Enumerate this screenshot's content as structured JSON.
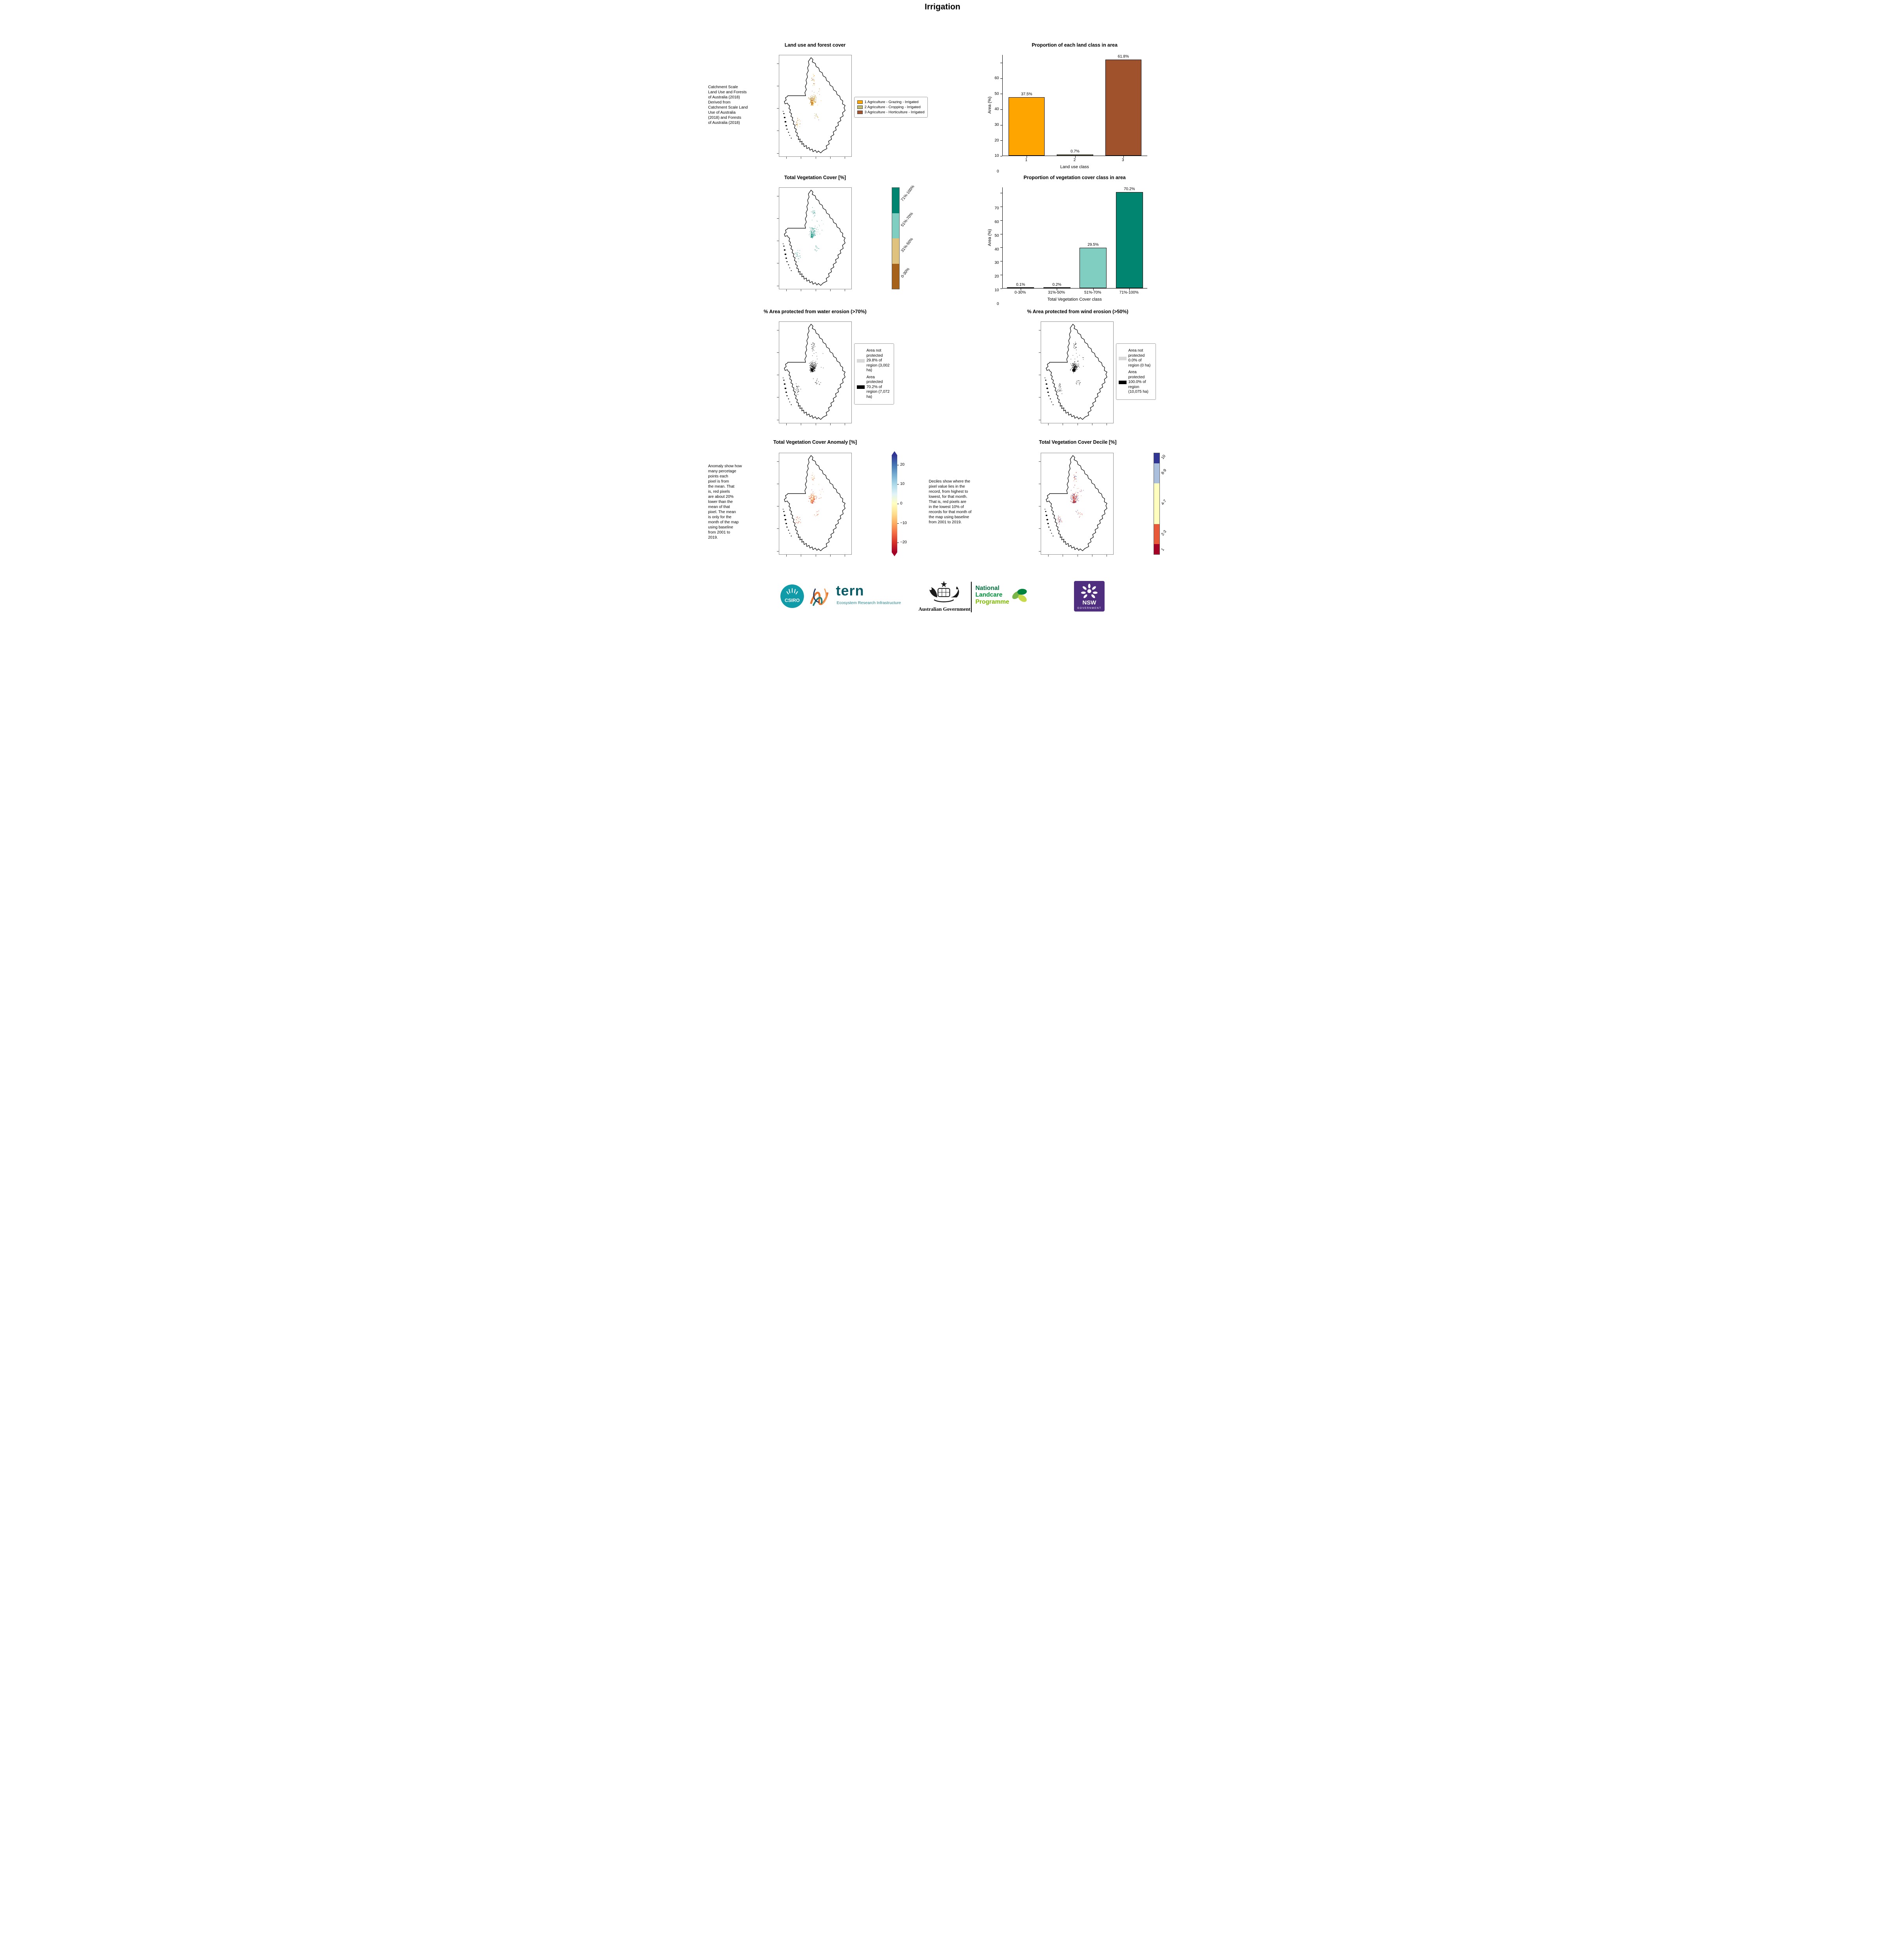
{
  "page_title": "Irrigation",
  "panels": {
    "land_use": {
      "title": "Land use and forest cover",
      "side_note": " Catchment Scale\nLand Use and Forests\nof Australia (2018)\nDerived from\nCatchment Scale Land\nUse of Australia\n(2018) and Forests\nof Australia (2018)",
      "legend": [
        {
          "label": "1 Agriculture - Grazing - Irrigated",
          "color": "#FFA500"
        },
        {
          "label": "2 Agriculture - Cropping - Irrigated",
          "color": "#BDB76B"
        },
        {
          "label": "3 Agriculture - Horticulture - Irrigated",
          "color": "#A0522D"
        }
      ]
    },
    "veg_cover": {
      "title": "Total Vegetation Cover [%]",
      "colorbar": [
        {
          "label": "71%-100%",
          "color": "#018571"
        },
        {
          "label": "51%-70%",
          "color": "#80CDC1"
        },
        {
          "label": "31%-50%",
          "color": "#DFC27D"
        },
        {
          "label": "0-30%",
          "color": "#A6611A"
        }
      ]
    },
    "water_erosion": {
      "title": "% Area protected from water erosion (>70%)",
      "legend": [
        {
          "label": "Area not protected 29.8% of region (3,002 ha)",
          "color": "#D9D9D9"
        },
        {
          "label": "Area protected 70.2% of region (7,072 ha)",
          "color": "#000000"
        }
      ]
    },
    "wind_erosion": {
      "title": "% Area protected from wind erosion (>50%)",
      "legend": [
        {
          "label": "Area not protected 0.0% of region (0 ha)",
          "color": "#D9D9D9"
        },
        {
          "label": "Area protected 100.0% of region (10,075 ha)",
          "color": "#000000"
        }
      ]
    },
    "anomaly": {
      "title": "Total Vegetation Cover Anomaly [%]",
      "side_note": "Anomaly show how\nmany percetage\npoints each\npixel is from\nthe mean. That\nis, red pixels\nare about 20%\nlower than the\nmean of that\npixel. The mean\nis only for the\nmonth of the map\nusing baseline\nfrom 2001 to\n2019.",
      "colorbar_ticks": [
        "20",
        "10",
        "0",
        "−10",
        "−20"
      ],
      "colorbar_colors": [
        "#313695",
        "#4575B4",
        "#74ADD1",
        "#ABD9E9",
        "#E0F3F8",
        "#FFFFBF",
        "#FEE090",
        "#FDAE61",
        "#F46D43",
        "#D73027",
        "#A50026"
      ]
    },
    "decile": {
      "title": "Total Vegetation Cover Decile [%]",
      "side_note": "Deciles show where the\npixel value lies in the\nrecord, from highest to\nlowest, for that month.\nThat is, red pixels are\nin the lowest 10% of\nrecords for that month of\nthe map using baseline\nfrom 2001 to 2019.",
      "colorbar": [
        {
          "label": "10",
          "color": "#313695",
          "span": 1
        },
        {
          "label": "8-9",
          "color": "#A9BFDC",
          "span": 2
        },
        {
          "label": "4-7",
          "color": "#FEFFBE",
          "span": 4
        },
        {
          "label": "2-3",
          "color": "#E8593A",
          "span": 2
        },
        {
          "label": "1",
          "color": "#A50026",
          "span": 1
        }
      ]
    }
  },
  "chart_data": [
    {
      "type": "bar",
      "title": "Proportion of each land class in area",
      "categories": [
        "1",
        "2",
        "3"
      ],
      "values": [
        37.5,
        0.7,
        61.8
      ],
      "value_labels": [
        "37.5%",
        "0.7%",
        "61.8%"
      ],
      "colors": [
        "#FFA500",
        "#BDB76B",
        "#A0522D"
      ],
      "xlabel": "Land use class",
      "ylabel": "Area (%)",
      "ylim": [
        0,
        65
      ],
      "yticks": [
        0,
        10,
        20,
        30,
        40,
        50,
        60
      ]
    },
    {
      "type": "bar",
      "title": "Proportion of vegetation cover class in area",
      "categories": [
        "0-30%",
        "31%-50%",
        "51%-70%",
        "71%-100%"
      ],
      "values": [
        0.1,
        0.2,
        29.5,
        70.2
      ],
      "value_labels": [
        "0.1%",
        "0.2%",
        "29.5%",
        "70.2%"
      ],
      "colors": [
        "#A6611A",
        "#DFC27D",
        "#80CDC1",
        "#018571"
      ],
      "xlabel": "Total Vegetation Cover class",
      "ylabel": "Area (%)",
      "ylim": [
        0,
        74
      ],
      "yticks": [
        0,
        10,
        20,
        30,
        40,
        50,
        60,
        70
      ]
    }
  ],
  "brand_colors": {
    "csiro_teal": "#0F9BA8",
    "tern_teal": "#0A5C66",
    "tern_light": "#23858D",
    "nlp_green_dark": "#00703C",
    "nlp_green": "#00913A",
    "nlp_green_light": "#7DBA00",
    "nsw_purple": "#4F2D7F"
  },
  "footer": {
    "csiro_label": "CSIRO",
    "tern_name": "tern",
    "tern_tagline": "Ecosystem Research Infrastructure",
    "aus_gov": "Australian Government",
    "nlp_line1": "National",
    "nlp_line2": "Landcare",
    "nlp_line3": "Programme",
    "nsw_line1": "NSW",
    "nsw_line2": "GOVERNMENT"
  }
}
